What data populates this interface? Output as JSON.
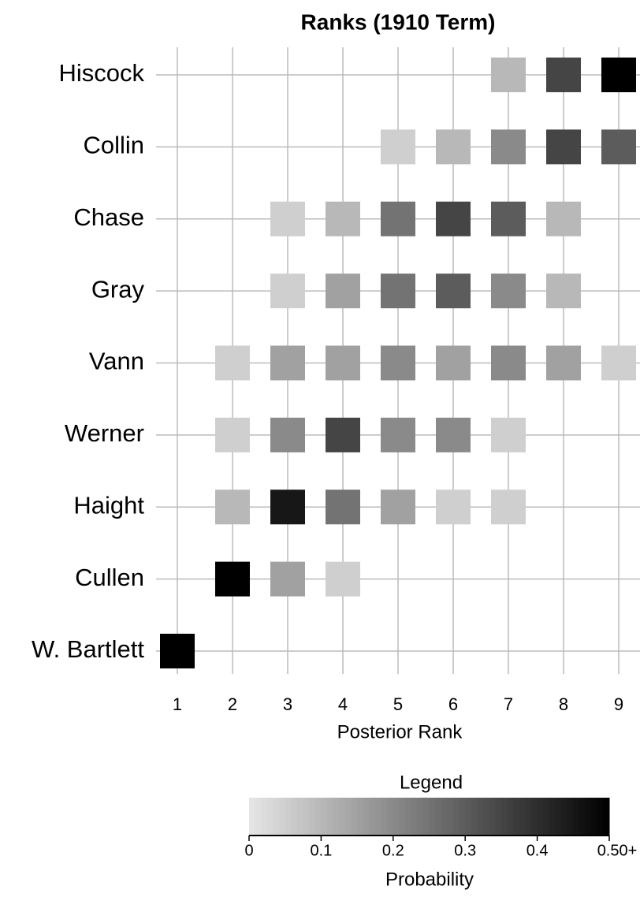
{
  "chart_data": {
    "type": "heatmap",
    "title": "Ranks (1910 Term)",
    "x_label": "Posterior Rank",
    "x": [
      1,
      2,
      3,
      4,
      5,
      6,
      7,
      8,
      9
    ],
    "categories": [
      "Hiscock",
      "Collin",
      "Chase",
      "Gray",
      "Vann",
      "Werner",
      "Haight",
      "Cullen",
      "W. Bartlett"
    ],
    "values": [
      [
        null,
        null,
        null,
        null,
        null,
        null,
        0.1,
        0.35,
        0.55
      ],
      [
        null,
        null,
        null,
        null,
        0.05,
        0.1,
        0.2,
        0.35,
        0.3
      ],
      [
        null,
        null,
        0.05,
        0.1,
        0.25,
        0.35,
        0.3,
        0.1,
        null
      ],
      [
        null,
        null,
        0.05,
        0.15,
        0.25,
        0.3,
        0.2,
        0.1,
        null
      ],
      [
        null,
        0.05,
        0.15,
        0.15,
        0.2,
        0.15,
        0.2,
        0.15,
        0.05
      ],
      [
        null,
        0.05,
        0.2,
        0.35,
        0.2,
        0.2,
        0.05,
        null,
        null
      ],
      [
        null,
        0.1,
        0.45,
        0.25,
        0.15,
        0.05,
        0.05,
        null,
        null
      ],
      [
        null,
        0.7,
        0.15,
        0.05,
        null,
        null,
        null,
        null,
        null
      ],
      [
        0.9,
        null,
        null,
        null,
        null,
        null,
        null,
        null,
        null
      ]
    ],
    "colors": [
      "#e6e6e6",
      "#000000"
    ],
    "grid": true,
    "colorbar": {
      "title": "Legend",
      "label": "Probability",
      "lim": [
        0,
        0.5
      ],
      "ticks": [
        0,
        0.1,
        0.2,
        0.3,
        0.4,
        {
          "value": 0.5,
          "label": "0.50+"
        }
      ]
    }
  }
}
